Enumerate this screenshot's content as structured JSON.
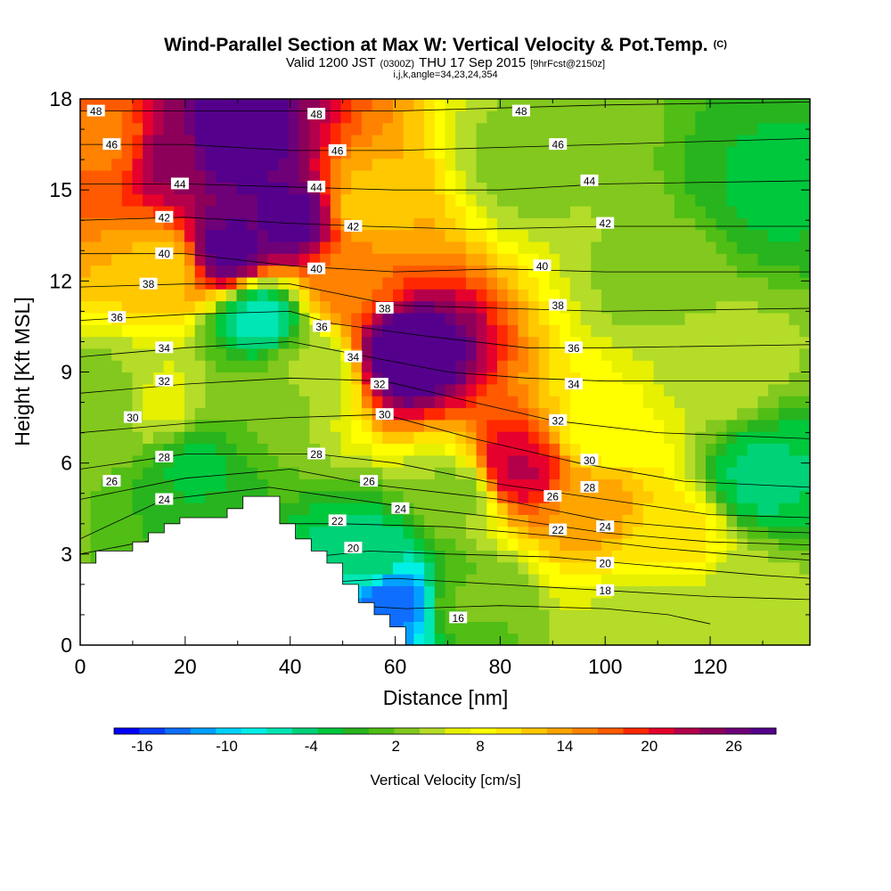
{
  "chart_data": {
    "type": "heatmap",
    "title": "Wind-Parallel Section at Max W: Vertical Velocity & Pot.Temp.",
    "title_mark": "(C)",
    "subtitle_main": "Valid 1200 JST",
    "subtitle_utc": "(0300Z)",
    "subtitle_date": "THU 17 Sep 2015",
    "subtitle_fcst": "[9hrFcst@2150z]",
    "subtitle2": "i,j,k,angle=34,23,24,354",
    "xlabel": "Distance [nm]",
    "ylabel": "Height [Kft MSL]",
    "xlim": [
      0,
      139
    ],
    "ylim": [
      0,
      18
    ],
    "x_ticks": [
      "0",
      "20",
      "40",
      "60",
      "80",
      "100",
      "120"
    ],
    "y_ticks": [
      "0",
      "3",
      "6",
      "9",
      "12",
      "15",
      "18"
    ],
    "colorbar_label": "Vertical Velocity [cm/s]",
    "colorbar_ticks": [
      "-16",
      "-10",
      "-4",
      "2",
      "8",
      "14",
      "20",
      "26"
    ],
    "colorbar_colors": [
      "#0000ff",
      "#0a3cff",
      "#0f6eff",
      "#00a0ff",
      "#00d2ff",
      "#00f0e6",
      "#00e6b4",
      "#00d278",
      "#00c83c",
      "#28b41e",
      "#50be14",
      "#82c81e",
      "#b4dc28",
      "#e6f000",
      "#ffff00",
      "#ffe600",
      "#ffc800",
      "#ffa500",
      "#ff8200",
      "#ff5a00",
      "#ff2800",
      "#e6002d",
      "#b4004b",
      "#8c005a",
      "#6e0078",
      "#55008c"
    ],
    "colorbar_range": [
      -18,
      29
    ],
    "grid": false,
    "velocity_features": [
      {
        "x": 62,
        "y": 9.6,
        "value": 30
      },
      {
        "x": 83,
        "y": 5.8,
        "value": 22
      },
      {
        "x": 98,
        "y": 4.6,
        "value": 14
      },
      {
        "x": 113,
        "y": 3.6,
        "value": 10
      },
      {
        "x": 28,
        "y": 16.6,
        "value": 30
      },
      {
        "x": 28,
        "y": 13.0,
        "value": 28
      },
      {
        "x": 18,
        "y": 16.2,
        "value": 24
      },
      {
        "x": 5,
        "y": 16.6,
        "value": 16
      },
      {
        "x": 40,
        "y": 14.0,
        "value": 28
      },
      {
        "x": 50,
        "y": 12.0,
        "value": 16
      },
      {
        "x": 55,
        "y": 14.5,
        "value": 12
      },
      {
        "x": 34,
        "y": 10.8,
        "value": -6
      },
      {
        "x": 34,
        "y": 8.0,
        "value": 2
      },
      {
        "x": 22,
        "y": 6.0,
        "value": -2
      },
      {
        "x": 5,
        "y": 8.0,
        "value": 2
      },
      {
        "x": 130,
        "y": 5.5,
        "value": -4
      },
      {
        "x": 132,
        "y": 15.0,
        "value": -2
      },
      {
        "x": 59,
        "y": 1.5,
        "value": -14
      },
      {
        "x": 55,
        "y": 2.8,
        "value": -4
      },
      {
        "x": 74,
        "y": 1.5,
        "value": 2
      },
      {
        "x": 85,
        "y": 16.0,
        "value": 3
      },
      {
        "x": 110,
        "y": 12.0,
        "value": 3
      },
      {
        "x": 120,
        "y": 9.0,
        "value": 5
      },
      {
        "x": 128,
        "y": 1.5,
        "value": 4
      },
      {
        "x": 110,
        "y": 1.0,
        "value": 4
      },
      {
        "x": 15,
        "y": 8.0,
        "value": 6
      },
      {
        "x": 72,
        "y": 5.0,
        "value": 3
      },
      {
        "x": 100,
        "y": 7.0,
        "value": 8
      },
      {
        "x": 16,
        "y": 12.5,
        "value": 12
      },
      {
        "x": 44,
        "y": 9.0,
        "value": 4
      }
    ],
    "terrain_kft": [
      [
        0,
        2.7
      ],
      [
        3,
        2.7
      ],
      [
        3,
        3.1
      ],
      [
        10,
        3.1
      ],
      [
        10,
        3.4
      ],
      [
        13,
        3.4
      ],
      [
        13,
        3.7
      ],
      [
        16,
        3.7
      ],
      [
        16,
        4.0
      ],
      [
        19,
        4.0
      ],
      [
        19,
        4.2
      ],
      [
        28,
        4.2
      ],
      [
        28,
        4.5
      ],
      [
        31,
        4.5
      ],
      [
        31,
        4.9
      ],
      [
        38,
        4.9
      ],
      [
        38,
        4.0
      ],
      [
        41,
        4.0
      ],
      [
        41,
        3.5
      ],
      [
        44,
        3.5
      ],
      [
        44,
        3.1
      ],
      [
        47,
        3.1
      ],
      [
        47,
        2.7
      ],
      [
        50,
        2.7
      ],
      [
        50,
        2.0
      ],
      [
        53,
        2.0
      ],
      [
        53,
        1.4
      ],
      [
        56,
        1.4
      ],
      [
        56,
        1.0
      ],
      [
        59,
        1.0
      ],
      [
        59,
        0.6
      ],
      [
        62,
        0.6
      ],
      [
        62,
        0
      ],
      [
        0,
        0
      ]
    ],
    "isentropes": [
      {
        "label": "16",
        "lx": 72,
        "ly": 0.9,
        "pts": [
          [
            0,
            1.5
          ],
          [
            52,
            1.3
          ],
          [
            62,
            1.2
          ],
          [
            80,
            1.3
          ],
          [
            100,
            1.2
          ],
          [
            112,
            1.0
          ],
          [
            120,
            0.7
          ]
        ]
      },
      {
        "label": "18",
        "lx": 100,
        "ly": 1.8,
        "pts": [
          [
            0,
            2.0
          ],
          [
            50,
            2.1
          ],
          [
            60,
            2.2
          ],
          [
            80,
            2.0
          ],
          [
            100,
            1.8
          ],
          [
            120,
            1.6
          ],
          [
            139,
            1.5
          ]
        ]
      },
      {
        "label": "20",
        "lx": 52,
        "ly": 3.2,
        "pts": [
          [
            0,
            2.5
          ],
          [
            44,
            2.9
          ],
          [
            55,
            3.1
          ],
          [
            70,
            3.0
          ],
          [
            90,
            2.9
          ],
          [
            110,
            2.6
          ],
          [
            130,
            2.3
          ],
          [
            139,
            2.2
          ]
        ]
      },
      {
        "label": "22",
        "lx": 49,
        "ly": 4.1,
        "pts": [
          [
            0,
            3.0
          ],
          [
            30,
            4.0
          ],
          [
            50,
            4.0
          ],
          [
            70,
            3.9
          ],
          [
            90,
            3.6
          ],
          [
            110,
            3.2
          ],
          [
            130,
            2.9
          ],
          [
            139,
            2.8
          ]
        ]
      },
      {
        "label": "24",
        "lx": 16,
        "ly": 4.8,
        "pts": [
          [
            0,
            3.5
          ],
          [
            16,
            4.8
          ],
          [
            36,
            5.2
          ],
          [
            60,
            4.6
          ],
          [
            80,
            4.2
          ],
          [
            100,
            3.7
          ],
          [
            120,
            3.4
          ],
          [
            139,
            3.3
          ]
        ]
      },
      {
        "label": "26",
        "lx": 6,
        "ly": 5.4,
        "pts": [
          [
            0,
            4.8
          ],
          [
            20,
            5.5
          ],
          [
            40,
            5.8
          ],
          [
            55,
            5.3
          ],
          [
            80,
            4.8
          ],
          [
            100,
            4.1
          ],
          [
            120,
            3.8
          ],
          [
            139,
            3.7
          ]
        ]
      },
      {
        "label": "28",
        "lx": 16,
        "ly": 6.2,
        "pts": [
          [
            0,
            5.8
          ],
          [
            20,
            6.3
          ],
          [
            45,
            6.3
          ],
          [
            60,
            6.0
          ],
          [
            80,
            5.3
          ],
          [
            100,
            4.8
          ],
          [
            120,
            4.3
          ],
          [
            139,
            4.2
          ]
        ]
      },
      {
        "label": "30",
        "lx": 10,
        "ly": 7.5,
        "pts": [
          [
            0,
            7.0
          ],
          [
            20,
            7.3
          ],
          [
            40,
            7.5
          ],
          [
            58,
            7.6
          ],
          [
            75,
            6.8
          ],
          [
            95,
            6.0
          ],
          [
            115,
            5.4
          ],
          [
            139,
            5.2
          ]
        ]
      },
      {
        "label": "32",
        "lx": 16,
        "ly": 8.7,
        "pts": [
          [
            0,
            8.3
          ],
          [
            20,
            8.6
          ],
          [
            40,
            8.8
          ],
          [
            58,
            8.7
          ],
          [
            75,
            8.0
          ],
          [
            90,
            7.4
          ],
          [
            110,
            7.0
          ],
          [
            139,
            6.8
          ]
        ]
      },
      {
        "label": "34",
        "lx": 16,
        "ly": 9.8,
        "pts": [
          [
            0,
            9.5
          ],
          [
            20,
            9.8
          ],
          [
            40,
            10.0
          ],
          [
            52,
            9.6
          ],
          [
            70,
            9.0
          ],
          [
            85,
            8.8
          ],
          [
            100,
            8.7
          ],
          [
            139,
            8.7
          ]
        ]
      },
      {
        "label": "36",
        "lx": 7,
        "ly": 10.8,
        "pts": [
          [
            0,
            10.7
          ],
          [
            20,
            10.9
          ],
          [
            40,
            11.0
          ],
          [
            48,
            10.6
          ],
          [
            65,
            10.2
          ],
          [
            85,
            9.8
          ],
          [
            100,
            9.8
          ],
          [
            139,
            9.9
          ]
        ]
      },
      {
        "label": "38",
        "lx": 13,
        "ly": 11.9,
        "pts": [
          [
            0,
            11.8
          ],
          [
            20,
            11.9
          ],
          [
            40,
            11.9
          ],
          [
            60,
            11.2
          ],
          [
            80,
            11.1
          ],
          [
            100,
            11.0
          ],
          [
            139,
            11.1
          ]
        ]
      },
      {
        "label": "40",
        "lx": 16,
        "ly": 12.9,
        "pts": [
          [
            0,
            12.9
          ],
          [
            20,
            12.9
          ],
          [
            40,
            12.5
          ],
          [
            60,
            12.3
          ],
          [
            80,
            12.4
          ],
          [
            100,
            12.3
          ],
          [
            139,
            12.3
          ]
        ]
      },
      {
        "label": "42",
        "lx": 16,
        "ly": 14.1,
        "pts": [
          [
            0,
            14.0
          ],
          [
            20,
            14.1
          ],
          [
            40,
            13.9
          ],
          [
            55,
            13.8
          ],
          [
            75,
            13.7
          ],
          [
            100,
            13.8
          ],
          [
            139,
            13.8
          ]
        ]
      },
      {
        "label": "44",
        "lx": 19,
        "ly": 15.2,
        "pts": [
          [
            0,
            15.2
          ],
          [
            20,
            15.2
          ],
          [
            40,
            15.1
          ],
          [
            60,
            15.0
          ],
          [
            80,
            15.0
          ],
          [
            100,
            15.2
          ],
          [
            139,
            15.3
          ]
        ]
      },
      {
        "label": "46",
        "lx": 6,
        "ly": 16.5,
        "pts": [
          [
            0,
            16.5
          ],
          [
            20,
            16.5
          ],
          [
            40,
            16.3
          ],
          [
            60,
            16.3
          ],
          [
            80,
            16.4
          ],
          [
            100,
            16.5
          ],
          [
            139,
            16.7
          ]
        ]
      },
      {
        "label": "48",
        "lx": 3,
        "ly": 17.6,
        "pts": [
          [
            0,
            17.6
          ],
          [
            20,
            17.6
          ],
          [
            40,
            17.6
          ],
          [
            60,
            17.6
          ],
          [
            80,
            17.7
          ],
          [
            100,
            17.8
          ],
          [
            139,
            17.9
          ]
        ]
      }
    ],
    "extra_labels": [
      {
        "label": "48",
        "lx": 45,
        "ly": 17.5
      },
      {
        "label": "48",
        "lx": 84,
        "ly": 17.6
      },
      {
        "label": "46",
        "lx": 49,
        "ly": 16.3
      },
      {
        "label": "46",
        "lx": 91,
        "ly": 16.5
      },
      {
        "label": "44",
        "lx": 45,
        "ly": 15.1
      },
      {
        "label": "44",
        "lx": 97,
        "ly": 15.3
      },
      {
        "label": "42",
        "lx": 52,
        "ly": 13.8
      },
      {
        "label": "42",
        "lx": 100,
        "ly": 13.9
      },
      {
        "label": "40",
        "lx": 45,
        "ly": 12.4
      },
      {
        "label": "40",
        "lx": 88,
        "ly": 12.5
      },
      {
        "label": "38",
        "lx": 58,
        "ly": 11.1
      },
      {
        "label": "38",
        "lx": 91,
        "ly": 11.2
      },
      {
        "label": "36",
        "lx": 46,
        "ly": 10.5
      },
      {
        "label": "36",
        "lx": 94,
        "ly": 9.8
      },
      {
        "label": "34",
        "lx": 52,
        "ly": 9.5
      },
      {
        "label": "34",
        "lx": 94,
        "ly": 8.6
      },
      {
        "label": "32",
        "lx": 57,
        "ly": 8.6
      },
      {
        "label": "32",
        "lx": 91,
        "ly": 7.4
      },
      {
        "label": "30",
        "lx": 58,
        "ly": 7.6
      },
      {
        "label": "30",
        "lx": 97,
        "ly": 6.1
      },
      {
        "label": "28",
        "lx": 45,
        "ly": 6.3
      },
      {
        "label": "28",
        "lx": 97,
        "ly": 5.2
      },
      {
        "label": "26",
        "lx": 55,
        "ly": 5.4
      },
      {
        "label": "26",
        "lx": 90,
        "ly": 4.9
      },
      {
        "label": "24",
        "lx": 61,
        "ly": 4.5
      },
      {
        "label": "24",
        "lx": 100,
        "ly": 3.9
      },
      {
        "label": "22",
        "lx": 91,
        "ly": 3.8
      },
      {
        "label": "20",
        "lx": 100,
        "ly": 2.7
      }
    ]
  }
}
